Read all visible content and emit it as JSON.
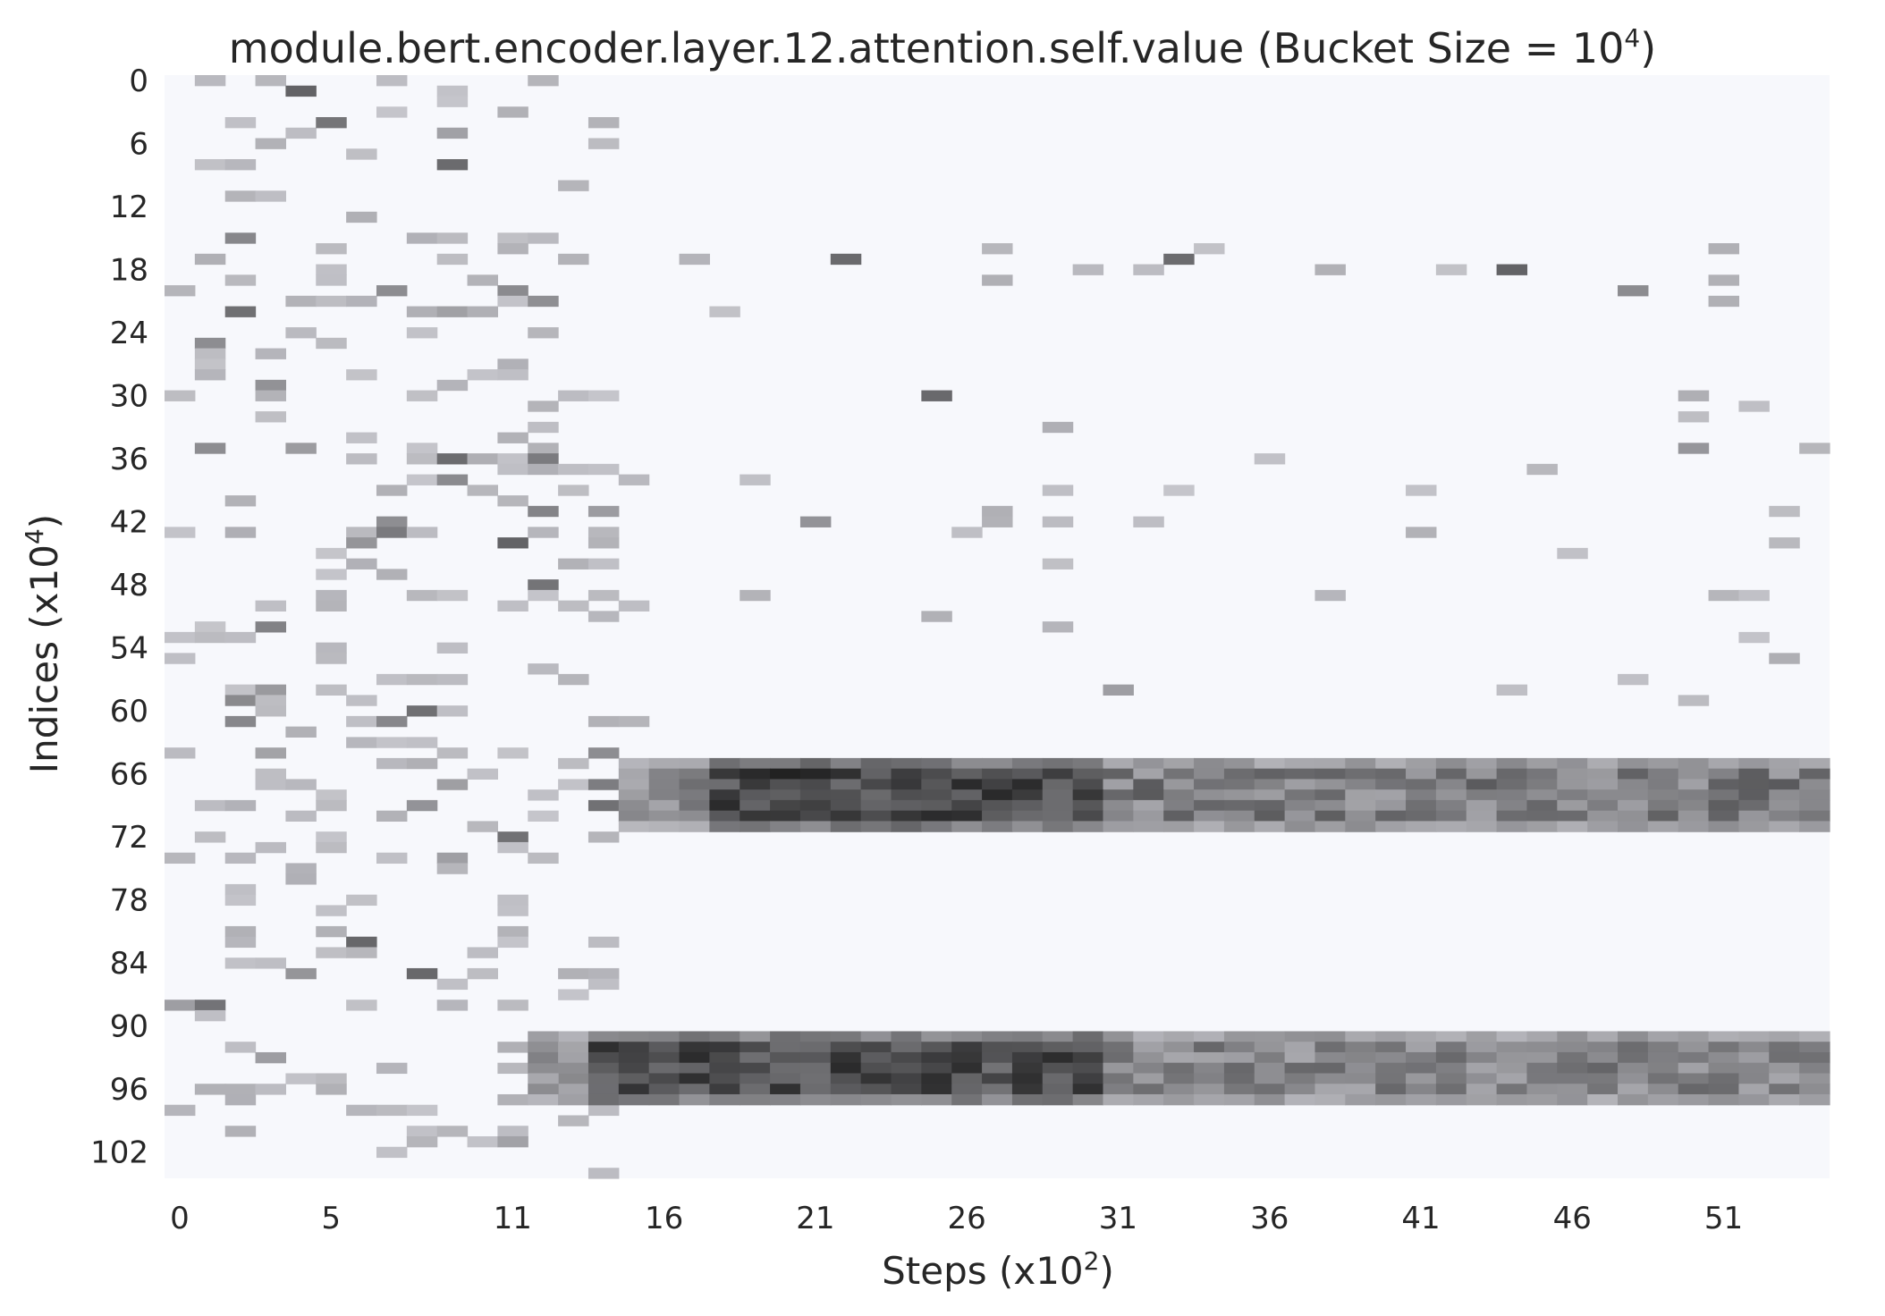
{
  "chart_data": {
    "type": "heatmap",
    "title": {
      "text": "module.bert.encoder.layer.12.attention.self.value (Bucket Size = 10",
      "sup": "4",
      "tail": ")"
    },
    "xlabel": {
      "text": "Steps (x10",
      "sup": "2",
      "tail": ")"
    },
    "ylabel": {
      "text": "Indices (x10",
      "sup": "4",
      "tail": ")"
    },
    "x_ticks": [
      "0",
      "5",
      "11",
      "16",
      "21",
      "26",
      "31",
      "36",
      "41",
      "46",
      "51"
    ],
    "y_ticks": [
      "0",
      "6",
      "12",
      "18",
      "24",
      "30",
      "36",
      "42",
      "48",
      "54",
      "60",
      "66",
      "72",
      "78",
      "84",
      "90",
      "96",
      "102"
    ],
    "n_steps": 55,
    "n_indices": 105,
    "colormap": "bone_r",
    "background_color": "#f7f8fc",
    "low_color": "#c9c9cf",
    "high_color": "#0f0f0f",
    "bands": [
      {
        "rows": [
          65,
          72
        ],
        "from_step": 15,
        "peak_steps": [
          18,
          30
        ],
        "peak_level": 0.9,
        "tail_level": 0.5
      },
      {
        "rows": [
          91,
          98
        ],
        "from_step": 12,
        "peak_steps": [
          14,
          30
        ],
        "peak_level": 0.85,
        "tail_level": 0.45
      }
    ],
    "sparse_regions": [
      {
        "steps": [
          0,
          15
        ],
        "rows": [
          0,
          105
        ],
        "density": 0.16
      },
      {
        "steps": [
          15,
          55
        ],
        "rows": [
          14,
          62
        ],
        "density": 0.03
      }
    ]
  }
}
